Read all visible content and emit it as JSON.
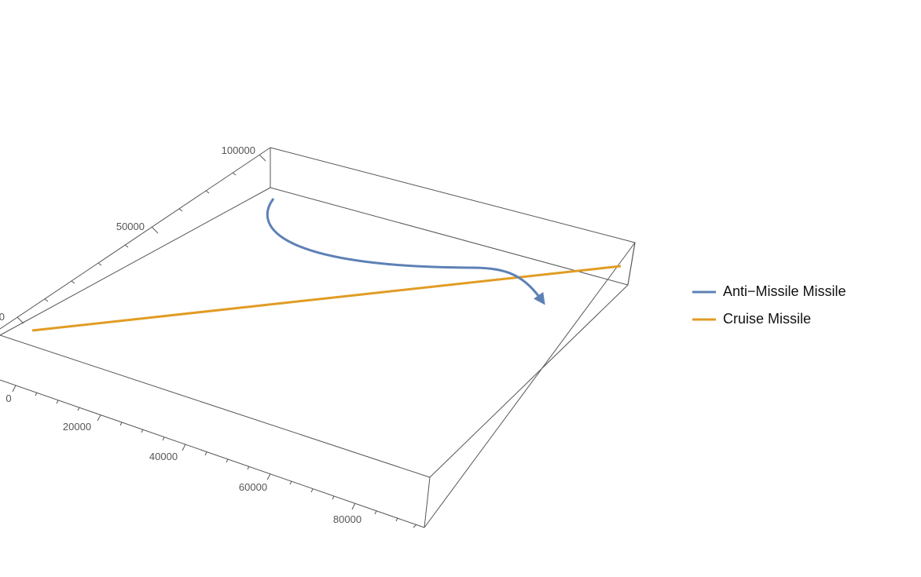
{
  "chart_data": {
    "type": "line",
    "title": "",
    "dimension": "3d",
    "x_axis": {
      "range": [
        0,
        90000
      ],
      "tick_labels": [
        "0",
        "20000",
        "40000",
        "60000",
        "80000"
      ]
    },
    "y_axis": {
      "range": [
        0,
        100000
      ],
      "tick_labels": [
        "0",
        "50000",
        "100000"
      ]
    },
    "legend": {
      "placement": "right"
    },
    "colors": {
      "anti_missile": "#5e81b5",
      "cruise": "#e19c24"
    },
    "series": [
      {
        "name": "Anti−Missile Missile",
        "color": "#5e81b5",
        "arrow_at_end": true
      },
      {
        "name": "Cruise Missile",
        "color": "#e19c24",
        "arrow_at_end": false
      }
    ]
  }
}
